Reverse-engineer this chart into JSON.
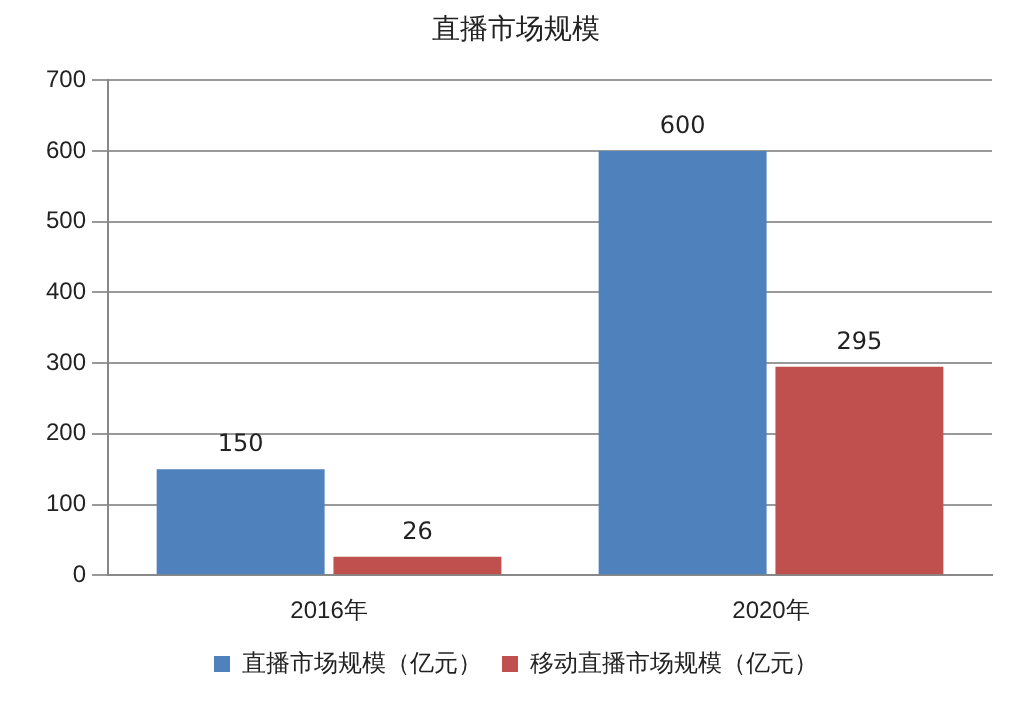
{
  "chart_data": {
    "type": "bar",
    "title": "直播市场规模",
    "categories": [
      "2016年",
      "2020年"
    ],
    "series": [
      {
        "name": "直播市场规模（亿元）",
        "color": "#4f81bd",
        "values": [
          150,
          600
        ]
      },
      {
        "name": "移动直播市场规模（亿元）",
        "color": "#c0504d",
        "values": [
          26,
          295
        ]
      }
    ],
    "ylim": [
      0,
      700
    ],
    "yticks": [
      0,
      100,
      200,
      300,
      400,
      500,
      600,
      700
    ],
    "grid": "y",
    "legend": "bottom",
    "data_labels": true
  }
}
